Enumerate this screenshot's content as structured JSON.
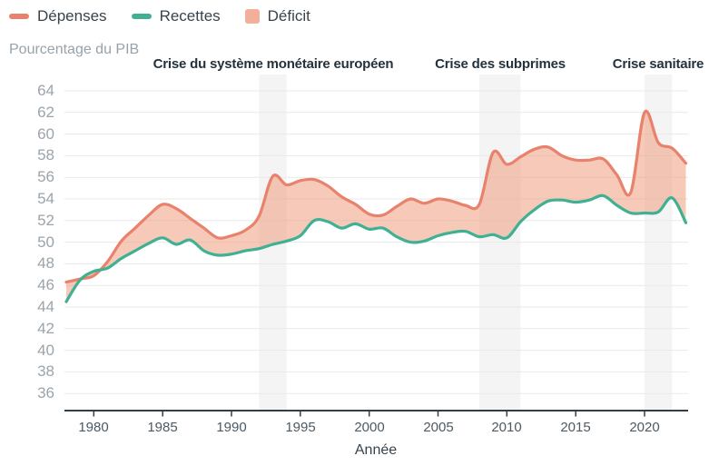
{
  "legend": {
    "items": [
      {
        "label": "Dépenses",
        "type": "line",
        "color": "#e8826d"
      },
      {
        "label": "Recettes",
        "type": "line",
        "color": "#3fb192"
      },
      {
        "label": "Déficit",
        "type": "area",
        "color": "#f2b09a"
      }
    ]
  },
  "chart_data": {
    "type": "area",
    "title": "",
    "xlabel": "Année",
    "ylabel": "Pourcentage du PIB",
    "xlim": [
      1978,
      2023
    ],
    "ylim": [
      34.3,
      65.2
    ],
    "xticks": [
      1980,
      1985,
      1990,
      1995,
      2000,
      2005,
      2010,
      2015,
      2020
    ],
    "yticks": [
      36,
      38,
      40,
      42,
      44,
      46,
      48,
      50,
      52,
      54,
      56,
      58,
      60,
      62,
      64
    ],
    "grid": true,
    "grid_color": "#e9e9e9",
    "axis_color": "#2f3e49",
    "band_color": "#f4f4f4",
    "legend_position": "top-left",
    "x_years": [
      1978,
      1979,
      1980,
      1981,
      1982,
      1983,
      1984,
      1985,
      1986,
      1987,
      1988,
      1989,
      1990,
      1991,
      1992,
      1993,
      1994,
      1995,
      1996,
      1997,
      1998,
      1999,
      2000,
      2001,
      2002,
      2003,
      2004,
      2005,
      2006,
      2007,
      2008,
      2009,
      2010,
      2011,
      2012,
      2013,
      2014,
      2015,
      2016,
      2017,
      2018,
      2019,
      2020,
      2021,
      2022,
      2023
    ],
    "series": [
      {
        "name": "Dépenses",
        "color": "#e8826d",
        "values": [
          46.3,
          46.6,
          46.9,
          48.2,
          50.1,
          51.3,
          52.5,
          53.5,
          53.1,
          52.2,
          51.3,
          50.4,
          50.6,
          51.1,
          52.4,
          56.1,
          55.3,
          55.7,
          55.8,
          55.2,
          54.2,
          53.5,
          52.6,
          52.5,
          53.3,
          54.0,
          53.6,
          54.0,
          53.8,
          53.4,
          53.5,
          58.3,
          57.2,
          57.9,
          58.6,
          58.8,
          58.0,
          57.6,
          57.6,
          57.7,
          56.2,
          54.6,
          62.0,
          59.2,
          58.7,
          57.3
        ]
      },
      {
        "name": "Recettes",
        "color": "#3fb192",
        "values": [
          44.5,
          46.5,
          47.3,
          47.6,
          48.5,
          49.2,
          49.9,
          50.4,
          49.8,
          50.2,
          49.2,
          48.8,
          48.9,
          49.2,
          49.4,
          49.8,
          50.1,
          50.6,
          52.0,
          51.9,
          51.3,
          51.7,
          51.2,
          51.3,
          50.5,
          50.0,
          50.1,
          50.6,
          50.9,
          51.0,
          50.5,
          50.7,
          50.4,
          51.9,
          53.0,
          53.8,
          53.9,
          53.7,
          53.9,
          54.3,
          53.4,
          52.7,
          52.7,
          52.8,
          54.1,
          51.8
        ]
      }
    ],
    "area_between": {
      "name": "Déficit",
      "between": [
        "Dépenses",
        "Recettes"
      ],
      "color": "#ef9c80",
      "opacity": 0.55
    },
    "crisis_bands": [
      {
        "label": "Crise du système monétaire européen",
        "from": 1992,
        "to": 1994
      },
      {
        "label": "Crise des subprimes",
        "from": 2008,
        "to": 2011
      },
      {
        "label": "Crise sanitaire",
        "from": 2020,
        "to": 2022
      }
    ]
  }
}
